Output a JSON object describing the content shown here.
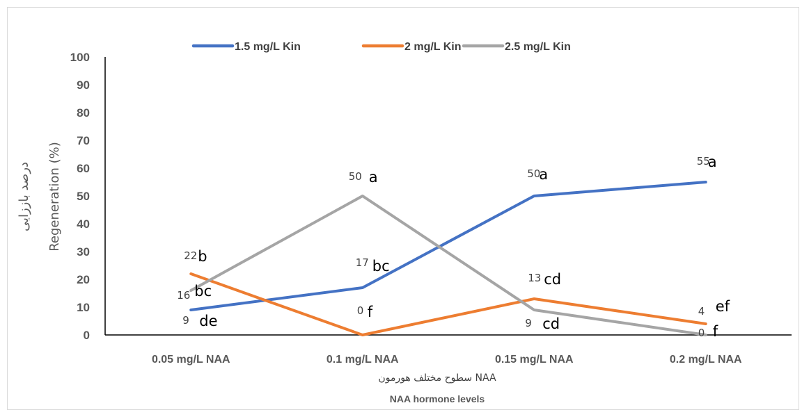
{
  "chart_data": {
    "type": "line",
    "categories": [
      "0.05 mg/L NAA",
      "0.1 mg/L NAA",
      "0.15 mg/L NAA",
      "0.2 mg/L NAA"
    ],
    "ylim": [
      0,
      100
    ],
    "yticks": [
      "0",
      "10",
      "20",
      "30",
      "40",
      "50",
      "60",
      "70",
      "80",
      "90",
      "100"
    ],
    "ylabel_fa": "درصد باززایی",
    "ylabel_en": "Regeneration (%)",
    "xlabel_fa": "سطوح مختلف هورمون NAA",
    "xlabel_en": "NAA hormone levels",
    "legend_position": "top",
    "series": [
      {
        "name": "1.5 mg/L Kin",
        "color": "#4472C4",
        "values": [
          9,
          17,
          50,
          55
        ],
        "value_labels": [
          "9",
          "17",
          "50",
          "55"
        ],
        "letters": [
          "de",
          "bc",
          "a",
          "a"
        ]
      },
      {
        "name": "2 mg/L Kin",
        "color": "#ED7D31",
        "values": [
          22,
          0,
          13,
          4
        ],
        "value_labels": [
          "22",
          "0",
          "13",
          "4"
        ],
        "letters": [
          "b",
          "f",
          "cd",
          "ef"
        ]
      },
      {
        "name": "2.5 mg/L Kin",
        "color": "#A5A5A5",
        "values": [
          16,
          50,
          9,
          0
        ],
        "value_labels": [
          "16",
          "50",
          "9",
          "0"
        ],
        "letters": [
          "bc",
          "a",
          "cd",
          "f"
        ]
      }
    ]
  }
}
